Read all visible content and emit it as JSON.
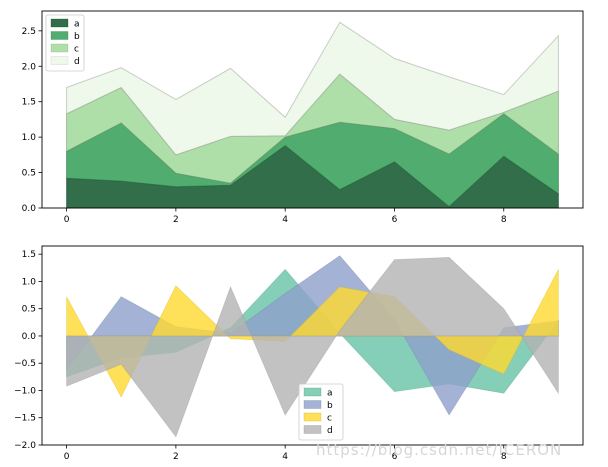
{
  "chart_data": [
    {
      "type": "area",
      "stacked": true,
      "x": [
        0,
        1,
        2,
        3,
        4,
        5,
        6,
        7,
        8,
        9
      ],
      "xticks": [
        "0",
        "2",
        "4",
        "6",
        "8"
      ],
      "xtick_values": [
        0,
        2,
        4,
        6,
        8
      ],
      "yticks": [
        "0.0",
        "0.5",
        "1.0",
        "1.5",
        "2.0",
        "2.5"
      ],
      "ytick_values": [
        0,
        0.5,
        1.0,
        1.5,
        2.0,
        2.5
      ],
      "xlim": [
        -0.45,
        9.45
      ],
      "ylim": [
        0,
        2.78
      ],
      "legend_position": "upper left",
      "series": [
        {
          "name": "a",
          "color": "#1b5e35",
          "values": [
            0.42,
            0.38,
            0.3,
            0.32,
            0.88,
            0.26,
            0.65,
            0.02,
            0.73,
            0.2
          ]
        },
        {
          "name": "b",
          "color": "#3ea45f",
          "values": [
            0.38,
            0.82,
            0.19,
            0.03,
            0.12,
            0.95,
            0.47,
            0.74,
            0.6,
            0.56
          ]
        },
        {
          "name": "c",
          "color": "#a6dba0",
          "values": [
            0.53,
            0.5,
            0.26,
            0.66,
            0.02,
            0.68,
            0.13,
            0.34,
            0.02,
            0.89
          ]
        },
        {
          "name": "d",
          "color": "#edf8e9",
          "values": [
            0.37,
            0.28,
            0.78,
            0.96,
            0.26,
            0.73,
            0.86,
            0.75,
            0.25,
            0.78
          ]
        }
      ]
    },
    {
      "type": "area",
      "stacked": false,
      "x": [
        0,
        1,
        2,
        3,
        4,
        5,
        6,
        7,
        8,
        9
      ],
      "xticks": [
        "0",
        "2",
        "4",
        "6",
        "8"
      ],
      "xtick_values": [
        0,
        2,
        4,
        6,
        8
      ],
      "yticks": [
        "1.5",
        "1.0",
        "0.5",
        "0.0",
        "−0.5",
        "−1.0",
        "−1.5",
        "−2.0"
      ],
      "ytick_values": [
        1.5,
        1.0,
        0.5,
        0.0,
        -0.5,
        -1.0,
        -1.5,
        -2.0
      ],
      "xlim": [
        -0.45,
        9.45
      ],
      "ylim": [
        -2.0,
        1.65
      ],
      "legend_position": "lower center",
      "series": [
        {
          "name": "a",
          "color": "#66c2a5",
          "values": [
            -0.75,
            -0.4,
            -0.3,
            0.15,
            1.22,
            0.05,
            -1.02,
            -0.88,
            -1.05,
            0.28
          ]
        },
        {
          "name": "b",
          "color": "#8da0cb",
          "values": [
            -0.62,
            0.72,
            0.17,
            0.05,
            0.78,
            1.47,
            0.3,
            -1.45,
            0.15,
            0.28
          ]
        },
        {
          "name": "c",
          "color": "#ffd92f",
          "values": [
            0.72,
            -1.12,
            0.92,
            -0.05,
            -0.1,
            0.9,
            0.72,
            -0.25,
            -0.7,
            1.22
          ]
        },
        {
          "name": "d",
          "color": "#b3b3b3",
          "values": [
            -0.92,
            -0.52,
            -1.85,
            0.9,
            -1.45,
            0.1,
            1.4,
            1.44,
            0.5,
            -1.05
          ]
        }
      ]
    }
  ],
  "watermark": "https://blog.csdn.net/ICERON"
}
